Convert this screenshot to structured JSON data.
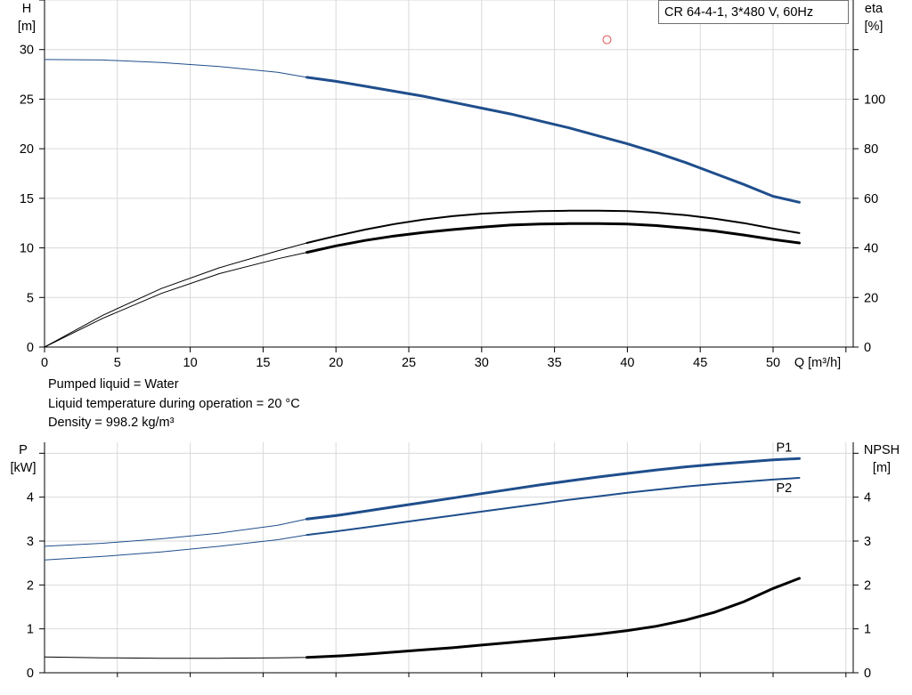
{
  "chart_data": [
    {
      "type": "line",
      "title": "",
      "legend_box": "CR 64-4-1, 3*480 V, 60Hz",
      "xlabel": "Q [m³/h]",
      "x_ticks": [
        0,
        5,
        10,
        15,
        20,
        25,
        30,
        35,
        40,
        45,
        50
      ],
      "xlim": [
        0,
        55.5
      ],
      "left_axis": {
        "name": "H",
        "unit": "[m]",
        "ylim": [
          0,
          35
        ],
        "ticks": [
          0,
          5,
          10,
          15,
          20,
          25,
          30
        ]
      },
      "right_axis": {
        "name": "eta",
        "unit": "[%]",
        "ylim": [
          0,
          140
        ],
        "ticks": [
          0,
          20,
          40,
          60,
          80,
          100
        ]
      },
      "grid": true,
      "series": [
        {
          "key": "head",
          "axis": "left",
          "color": "#1f4e8c",
          "x": [
            0,
            4,
            8,
            12,
            16,
            18,
            20,
            22,
            24,
            26,
            28,
            30,
            32,
            34,
            36,
            38,
            40,
            42,
            44,
            46,
            48,
            50,
            51.8
          ],
          "values": [
            29.0,
            28.95,
            28.7,
            28.3,
            27.7,
            27.2,
            26.8,
            26.3,
            25.8,
            25.3,
            24.7,
            24.1,
            23.5,
            22.8,
            22.1,
            21.3,
            20.5,
            19.6,
            18.6,
            17.5,
            16.4,
            15.2,
            14.6
          ]
        },
        {
          "key": "eta_1",
          "axis": "right",
          "color": "#000000",
          "x": [
            0,
            4,
            8,
            12,
            16,
            18,
            20,
            22,
            24,
            26,
            28,
            30,
            32,
            34,
            36,
            38,
            40,
            42,
            44,
            46,
            48,
            50,
            51.8
          ],
          "values": [
            0,
            12.8,
            23.6,
            32.0,
            38.8,
            42.0,
            44.8,
            47.4,
            49.6,
            51.4,
            52.8,
            53.8,
            54.4,
            54.8,
            55.0,
            55.0,
            54.8,
            54.2,
            53.2,
            51.8,
            50.0,
            47.8,
            46.0
          ]
        },
        {
          "key": "eta_2",
          "axis": "right",
          "color": "#000000",
          "x": [
            0,
            4,
            8,
            12,
            16,
            18,
            20,
            22,
            24,
            26,
            28,
            30,
            32,
            34,
            36,
            38,
            40,
            42,
            44,
            46,
            48,
            50,
            51.8
          ],
          "values": [
            0,
            11.6,
            21.6,
            29.6,
            35.6,
            38.2,
            40.8,
            43.0,
            44.8,
            46.2,
            47.4,
            48.4,
            49.2,
            49.6,
            49.8,
            49.8,
            49.6,
            49.0,
            48.0,
            46.8,
            45.2,
            43.4,
            42.0
          ]
        }
      ],
      "marker": {
        "x": 38.6,
        "y": 31.0,
        "color": "#e05050"
      },
      "operating_from_x": 18
    },
    {
      "type": "line",
      "title": "",
      "xlabel": "",
      "xlim": [
        0,
        55.5
      ],
      "left_axis": {
        "name": "P",
        "unit": "[kW]",
        "ylim": [
          0,
          5.25
        ],
        "ticks": [
          0,
          1,
          2,
          3,
          4
        ]
      },
      "right_axis": {
        "name": "NPSH",
        "unit": "[m]",
        "ylim": [
          0,
          5.25
        ],
        "ticks": [
          0,
          1,
          2,
          3,
          4
        ]
      },
      "grid": true,
      "series": [
        {
          "key": "p1",
          "name": "P1",
          "axis": "left",
          "color": "#1f4e8c",
          "x": [
            0,
            4,
            8,
            12,
            16,
            18,
            20,
            22,
            24,
            26,
            28,
            30,
            32,
            34,
            36,
            38,
            40,
            42,
            44,
            46,
            48,
            50,
            51.8
          ],
          "values": [
            2.88,
            2.95,
            3.05,
            3.18,
            3.36,
            3.5,
            3.58,
            3.68,
            3.78,
            3.88,
            3.98,
            4.08,
            4.18,
            4.28,
            4.37,
            4.46,
            4.54,
            4.62,
            4.69,
            4.75,
            4.8,
            4.85,
            4.88
          ]
        },
        {
          "key": "p2",
          "name": "P2",
          "axis": "left",
          "color": "#1f4e8c",
          "x": [
            0,
            4,
            8,
            12,
            16,
            18,
            20,
            22,
            24,
            26,
            28,
            30,
            32,
            34,
            36,
            38,
            40,
            42,
            44,
            46,
            48,
            50,
            51.8
          ],
          "values": [
            2.57,
            2.65,
            2.75,
            2.88,
            3.03,
            3.14,
            3.22,
            3.31,
            3.4,
            3.49,
            3.58,
            3.67,
            3.76,
            3.85,
            3.94,
            4.02,
            4.1,
            4.17,
            4.24,
            4.3,
            4.35,
            4.4,
            4.44
          ]
        },
        {
          "key": "npsh",
          "axis": "right",
          "color": "#000000",
          "x": [
            0,
            4,
            8,
            12,
            16,
            18,
            20,
            22,
            24,
            26,
            28,
            30,
            32,
            34,
            36,
            38,
            40,
            42,
            44,
            46,
            48,
            50,
            51.8
          ],
          "values": [
            0.36,
            0.34,
            0.33,
            0.33,
            0.34,
            0.35,
            0.38,
            0.42,
            0.47,
            0.52,
            0.57,
            0.63,
            0.69,
            0.75,
            0.81,
            0.88,
            0.96,
            1.06,
            1.2,
            1.38,
            1.62,
            1.92,
            2.15
          ]
        }
      ],
      "operating_from_x": 18
    }
  ],
  "info": {
    "liquid": "Pumped liquid = Water",
    "temperature": "Liquid temperature during operation = 20 °C",
    "density": "Density = 998.2 kg/m³"
  }
}
